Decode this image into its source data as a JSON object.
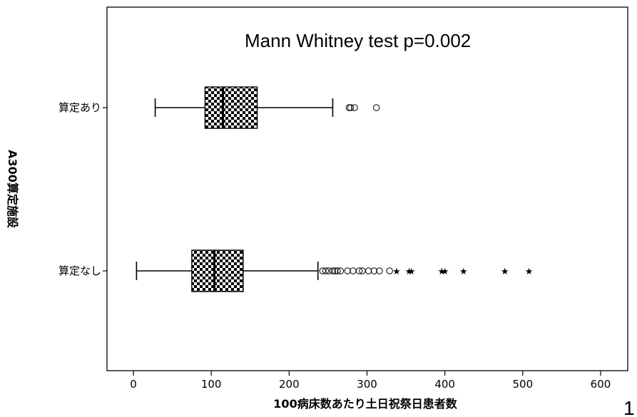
{
  "chart_data": {
    "type": "boxplot",
    "annotation": "Mann Whitney test p=0.002",
    "xlabel": "100病床数あたり土日祝祭日患者数",
    "ylabel": "A300算定施設",
    "xlim": [
      -30,
      620
    ],
    "xticks": [
      0,
      100,
      200,
      300,
      400,
      500,
      600
    ],
    "grid": false,
    "categories": [
      "算定あり",
      "算定なし"
    ],
    "series": [
      {
        "category": "算定あり",
        "min": 28,
        "q1": 92,
        "median": 115,
        "q3": 159,
        "max": 256,
        "outliers": [
          277,
          279,
          284,
          312
        ],
        "extremes": []
      },
      {
        "category": "算定なし",
        "min": 4,
        "q1": 75,
        "median": 104,
        "q3": 141,
        "max": 237,
        "outliers": [
          243,
          247,
          251,
          256,
          259,
          262,
          266,
          275,
          282,
          290,
          294,
          302,
          309,
          316,
          329
        ],
        "extremes": [
          338,
          354,
          357,
          396,
          400,
          424,
          477,
          508
        ]
      }
    ],
    "box_fill": "checkerboard"
  },
  "page": {
    "slide_number": "1"
  }
}
